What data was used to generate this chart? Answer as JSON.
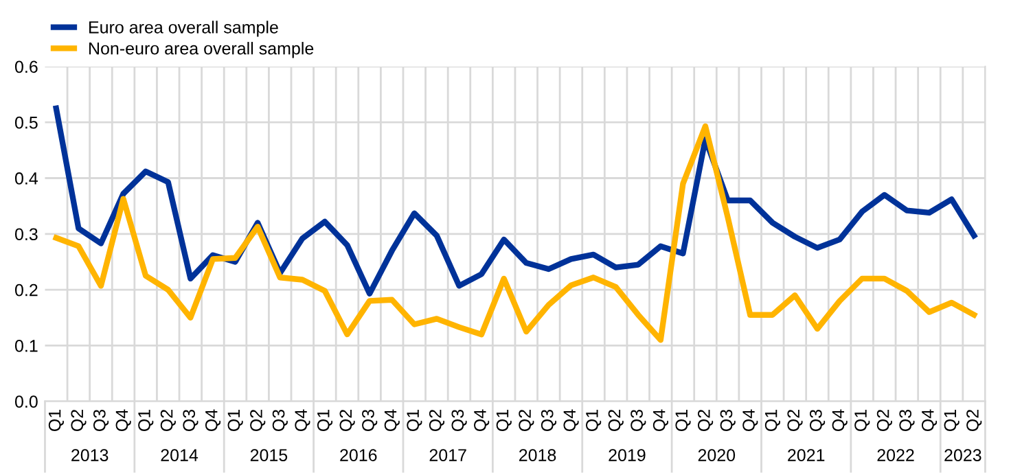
{
  "chart_data": {
    "type": "line",
    "categories": [
      "Q1",
      "Q2",
      "Q3",
      "Q4",
      "Q1",
      "Q2",
      "Q3",
      "Q4",
      "Q1",
      "Q2",
      "Q3",
      "Q4",
      "Q1",
      "Q2",
      "Q3",
      "Q4",
      "Q1",
      "Q2",
      "Q3",
      "Q4",
      "Q1",
      "Q2",
      "Q3",
      "Q4",
      "Q1",
      "Q2",
      "Q3",
      "Q4",
      "Q1",
      "Q2",
      "Q3",
      "Q4",
      "Q1",
      "Q2",
      "Q3",
      "Q4",
      "Q1",
      "Q2",
      "Q3",
      "Q4",
      "Q1",
      "Q2"
    ],
    "annotations": [
      "2013",
      "2014",
      "2015",
      "2016",
      "2017",
      "2018",
      "2019",
      "2020",
      "2021",
      "2022",
      "2023"
    ],
    "series": [
      {
        "name": "Euro area overall sample",
        "color": "#003299",
        "values": [
          0.525,
          0.31,
          0.283,
          0.372,
          0.412,
          0.393,
          0.22,
          0.262,
          0.25,
          0.32,
          0.23,
          0.292,
          0.322,
          0.28,
          0.193,
          0.27,
          0.337,
          0.297,
          0.207,
          0.228,
          0.29,
          0.248,
          0.237,
          0.255,
          0.263,
          0.24,
          0.245,
          0.278,
          0.265,
          0.47,
          0.36,
          0.36,
          0.32,
          0.295,
          0.275,
          0.29,
          0.34,
          0.37,
          0.342,
          0.338,
          0.362,
          0.297
        ]
      },
      {
        "name": "Non-euro area overall sample",
        "color": "#ffb400",
        "values": [
          0.293,
          0.278,
          0.207,
          0.363,
          0.225,
          0.2,
          0.15,
          0.255,
          0.257,
          0.313,
          0.222,
          0.218,
          0.198,
          0.12,
          0.18,
          0.182,
          0.138,
          0.148,
          0.133,
          0.12,
          0.22,
          0.125,
          0.173,
          0.208,
          0.222,
          0.205,
          0.155,
          0.11,
          0.39,
          0.493,
          0.33,
          0.155,
          0.155,
          0.19,
          0.13,
          0.18,
          0.22,
          0.22,
          0.198,
          0.16,
          0.177,
          0.155
        ]
      }
    ],
    "ylim": [
      0,
      0.6
    ],
    "yticks": [
      {
        "value": 0,
        "label": "0.0"
      },
      0.1,
      0.2,
      0.3,
      0.4,
      0.5,
      0.6
    ],
    "grid": true,
    "legend": "top left",
    "marker": "none",
    "line_style": "solid"
  }
}
